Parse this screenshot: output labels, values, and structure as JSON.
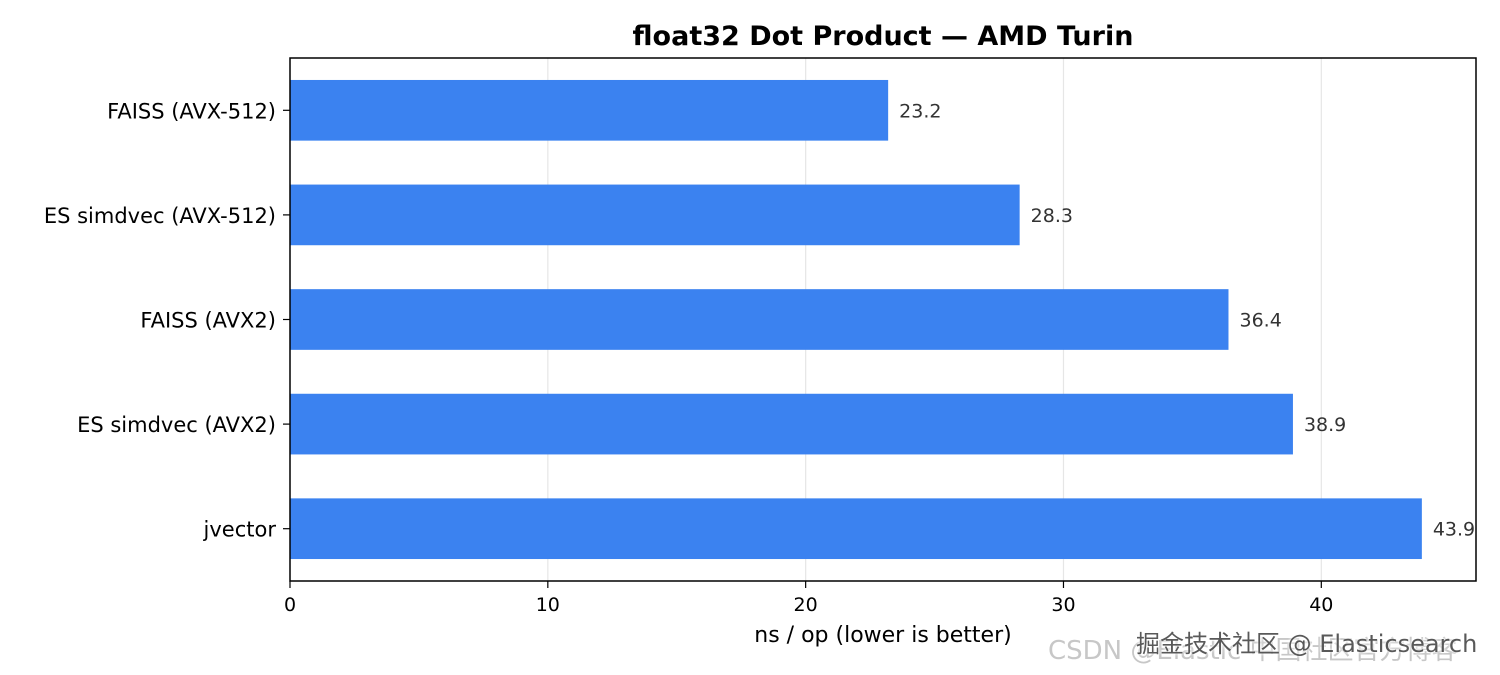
{
  "chart_data": {
    "type": "bar",
    "orientation": "horizontal",
    "title": "float32 Dot Product — AMD Turin",
    "categories": [
      "FAISS (AVX-512)",
      "ES simdvec (AVX-512)",
      "FAISS (AVX2)",
      "ES simdvec (AVX2)",
      "jvector"
    ],
    "values": [
      23.2,
      28.3,
      36.4,
      38.9,
      43.9
    ],
    "value_labels": [
      "23.2",
      "28.3",
      "36.4",
      "38.9",
      "43.9"
    ],
    "xlabel": "ns / op  (lower is better)",
    "ylabel": "",
    "xlim": [
      0,
      46
    ],
    "xticks": [
      0,
      10,
      20,
      30,
      40
    ],
    "grid": "vertical",
    "bar_color": "#3b82f0"
  },
  "watermark": {
    "back": "CSDN @Elastic 中国社区官方博客",
    "front": "掘金技术社区 @ Elasticsearch"
  }
}
